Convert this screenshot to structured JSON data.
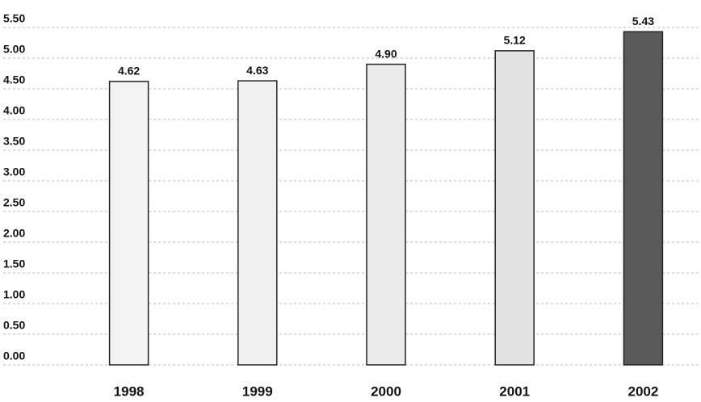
{
  "chart_data": {
    "type": "bar",
    "categories": [
      "1998",
      "1999",
      "2000",
      "2001",
      "2002"
    ],
    "values": [
      4.62,
      4.63,
      4.9,
      5.12,
      5.43
    ],
    "value_labels": [
      "4.62",
      "4.63",
      "4.90",
      "5.12",
      "5.43"
    ],
    "colors": [
      "#f3f3f3",
      "#f1f1f1",
      "#ebebeb",
      "#e2e2e2",
      "#5a5a5a"
    ],
    "ylim": [
      0,
      5.5
    ],
    "yticks": [
      {
        "value": 0,
        "label": "0.00"
      },
      {
        "value": 0.5,
        "label": "0.50"
      },
      {
        "value": 1,
        "label": "1.00"
      },
      {
        "value": 1.5,
        "label": "1.50"
      },
      {
        "value": 2,
        "label": "2.00"
      },
      {
        "value": 2.5,
        "label": "2.50"
      },
      {
        "value": 3,
        "label": "3.00"
      },
      {
        "value": 3.5,
        "label": "3.50"
      },
      {
        "value": 4,
        "label": "4.00"
      },
      {
        "value": 4.5,
        "label": "4.50"
      },
      {
        "value": 5,
        "label": "5.00"
      },
      {
        "value": 5.5,
        "label": "5.50"
      }
    ],
    "grid": true
  }
}
